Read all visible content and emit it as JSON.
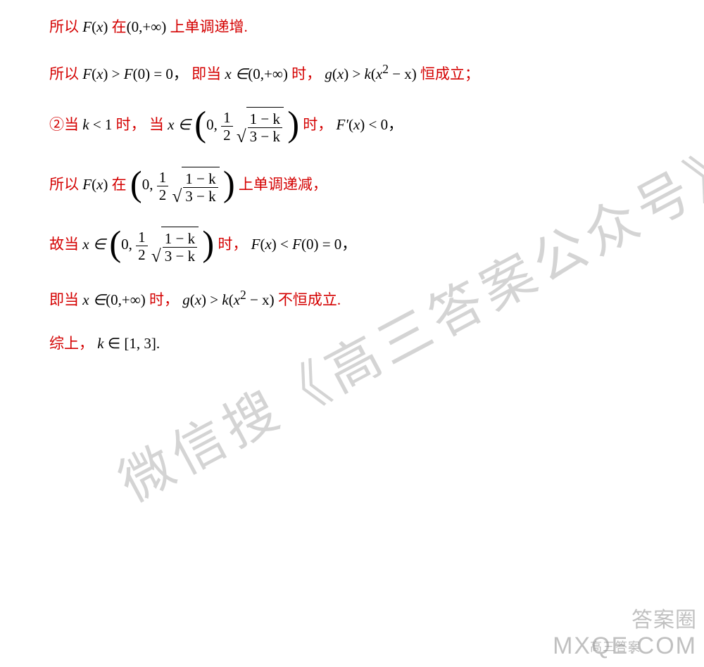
{
  "colors": {
    "red": "#d40000",
    "black": "#000000",
    "bg": "#ffffff",
    "watermark": "rgba(120,120,120,0.32)"
  },
  "fontsize": {
    "body": 21,
    "watermark_main": 75,
    "watermark_side": 34
  },
  "lines": {
    "l1": {
      "a": "所以",
      "b": "F",
      "c": "x",
      "d": "在",
      "e": "0,+∞",
      "f": "上单调递增."
    },
    "l2": {
      "a": "所以",
      "fx": "F",
      "x": "x",
      "g": ">",
      "f0": "F",
      "z": "0",
      "eq": "= 0",
      "m1": "，",
      "m2": "即当",
      "xin": "x ∈",
      "rng": "0,+∞",
      "shi": "时，",
      "gx": "g",
      "gt": ">",
      "k": "k",
      "xsq": "x",
      "sup": "2",
      "mx": "− x",
      "end": "恒成立；"
    },
    "l3": {
      "a": "②当",
      "k": "k",
      "lt": "< 1",
      "shi": "时，",
      "dang": "当",
      "xin": "x ∈",
      "zero": "0,",
      "half_n": "1",
      "half_d": "2",
      "fr_n": "1 − k",
      "fr_d": "3 − k",
      "shi2": "时，",
      "fp": "F′",
      "x": "x",
      "lt0": "< 0",
      "comma": "，"
    },
    "l4": {
      "a": "所以",
      "fx": "F",
      "x": "x",
      "zai": "在",
      "zero": "0,",
      "half_n": "1",
      "half_d": "2",
      "fr_n": "1 − k",
      "fr_d": "3 − k",
      "end": "上单调递减，"
    },
    "l5": {
      "a": "故当",
      "xin": "x ∈",
      "zero": "0,",
      "half_n": "1",
      "half_d": "2",
      "fr_n": "1 − k",
      "fr_d": "3 − k",
      "shi": "时，",
      "fx": "F",
      "x": "x",
      "lt": "<",
      "f0": "F",
      "z": "0",
      "eq": "= 0",
      "comma": "，"
    },
    "l6": {
      "a": "即当",
      "xin": "x ∈",
      "rng": "0,+∞",
      "shi": "时，",
      "gx": "g",
      "x": "x",
      "gt": ">",
      "k": "k",
      "xsq": "x",
      "sup": "2",
      "mx": "− x",
      "end": "不恒成立."
    },
    "l7": {
      "a": "综上，",
      "k": "k",
      "in": "∈",
      "rng": "[1, 3]",
      "dot": "."
    }
  },
  "watermarks": {
    "main": "微信搜《高三答案公众号》",
    "side1": "答案圈",
    "side2": "MXQE.COM",
    "side3": "高三答案"
  }
}
